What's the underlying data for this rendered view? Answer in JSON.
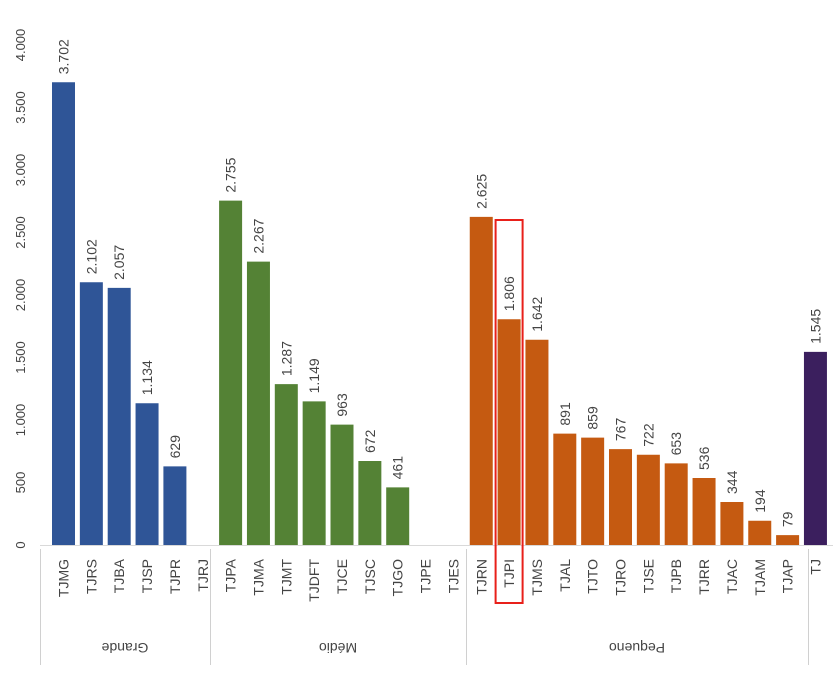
{
  "chart_data": {
    "type": "bar",
    "title": "",
    "xlabel": "",
    "ylabel": "",
    "ylim": [
      0,
      4000
    ],
    "yticks": [
      0,
      500,
      1000,
      1500,
      2000,
      2500,
      3000,
      3500,
      4000
    ],
    "ytick_labels": [
      "0",
      "500",
      "1.000",
      "1.500",
      "2.000",
      "2.500",
      "3.000",
      "3.500",
      "4.000"
    ],
    "grid": false,
    "legend": "none",
    "orientation": "rotated 90° (labels read sideways)",
    "groups": [
      {
        "name": "Grande",
        "color": "#2f5597",
        "bars": [
          {
            "category": "TJMG",
            "value": 3702,
            "label": "3.702"
          },
          {
            "category": "TJRS",
            "value": 2102,
            "label": "2.102"
          },
          {
            "category": "TJBA",
            "value": 2057,
            "label": "2.057"
          },
          {
            "category": "TJSP",
            "value": 1134,
            "label": "1.134"
          },
          {
            "category": "TJPR",
            "value": 629,
            "label": "629"
          },
          {
            "category": "TJRJ",
            "value": null,
            "label": ""
          }
        ]
      },
      {
        "name": "Médio",
        "color": "#548235",
        "bars": [
          {
            "category": "TJPA",
            "value": 2755,
            "label": "2.755"
          },
          {
            "category": "TJMA",
            "value": 2267,
            "label": "2.267"
          },
          {
            "category": "TJMT",
            "value": 1287,
            "label": "1.287"
          },
          {
            "category": "TJDFT",
            "value": 1149,
            "label": "1.149"
          },
          {
            "category": "TJCE",
            "value": 963,
            "label": "963"
          },
          {
            "category": "TJSC",
            "value": 672,
            "label": "672"
          },
          {
            "category": "TJGO",
            "value": 461,
            "label": "461"
          },
          {
            "category": "TJPE",
            "value": null,
            "label": ""
          },
          {
            "category": "TJES",
            "value": null,
            "label": ""
          }
        ]
      },
      {
        "name": "Pequeno",
        "color": "#c55a11",
        "bars": [
          {
            "category": "TJRN",
            "value": 2625,
            "label": "2.625"
          },
          {
            "category": "TJPI",
            "value": 1806,
            "label": "1.806",
            "highlighted": true
          },
          {
            "category": "TJMS",
            "value": 1642,
            "label": "1.642"
          },
          {
            "category": "TJAL",
            "value": 891,
            "label": "891"
          },
          {
            "category": "TJTO",
            "value": 859,
            "label": "859"
          },
          {
            "category": "TJRO",
            "value": 767,
            "label": "767"
          },
          {
            "category": "TJSE",
            "value": 722,
            "label": "722"
          },
          {
            "category": "TJPB",
            "value": 653,
            "label": "653"
          },
          {
            "category": "TJRR",
            "value": 536,
            "label": "536"
          },
          {
            "category": "TJAC",
            "value": 344,
            "label": "344"
          },
          {
            "category": "TJAM",
            "value": 194,
            "label": "194"
          },
          {
            "category": "TJAP",
            "value": 79,
            "label": "79"
          }
        ]
      },
      {
        "name": "",
        "color": "#3b1f5e",
        "bars": [
          {
            "category": "TJ",
            "value": 1545,
            "label": "1.545"
          }
        ]
      }
    ],
    "highlight_color": "#e8201a"
  }
}
